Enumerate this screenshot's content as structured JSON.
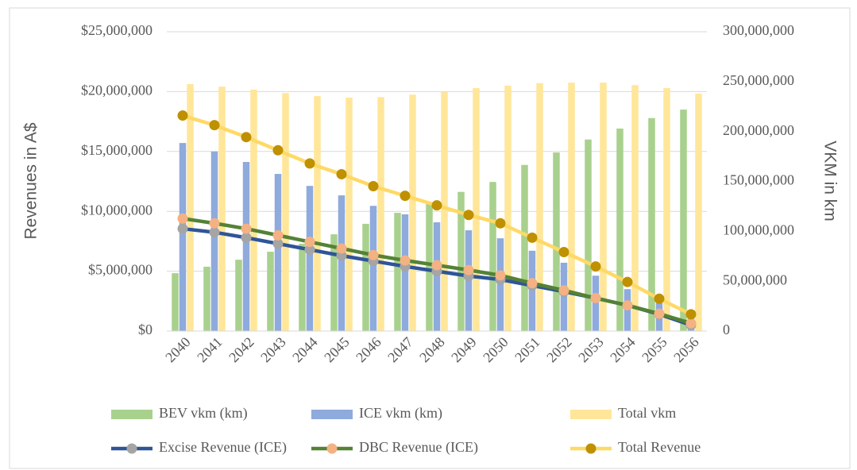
{
  "chart_data": {
    "type": "bar-line",
    "y_label": "Revenues in A$",
    "y2_label": "VKM in km",
    "categories": [
      "2040",
      "2041",
      "2042",
      "2043",
      "2044",
      "2045",
      "2046",
      "2047",
      "2048",
      "2049",
      "2050",
      "2051",
      "2052",
      "2053",
      "2054",
      "2055",
      "2056"
    ],
    "ylim": [
      0,
      25000000
    ],
    "yticks": [
      {
        "value": 0,
        "label": "$0"
      },
      {
        "value": 5000000,
        "label": "$5,000,000"
      },
      {
        "value": 10000000,
        "label": "$10,000,000"
      },
      {
        "value": 15000000,
        "label": "$15,000,000"
      },
      {
        "value": 20000000,
        "label": "$20,000,000"
      },
      {
        "value": 25000000,
        "label": "$25,000,000"
      }
    ],
    "y2lim": [
      0,
      300000000
    ],
    "y2ticks": [
      0,
      {
        "value": 50000000,
        "label": "50,000,000"
      },
      {
        "value": 100000000,
        "label": "100,000,000"
      },
      {
        "value": 150000000,
        "label": "150,000,000"
      },
      {
        "value": 200000000,
        "label": "200,000,000"
      },
      {
        "value": 250000000,
        "label": "250,000,000"
      },
      {
        "value": 300000000,
        "label": "300,000,000"
      }
    ],
    "grid": true,
    "series": [
      {
        "name": "BEV vkm (km)",
        "kind": "bar",
        "axis": "y2",
        "color": "#a9d18e",
        "values": [
          58000000,
          64500000,
          71500000,
          79500000,
          87500000,
          97000000,
          107500000,
          118500000,
          128000000,
          139500000,
          149500000,
          166500000,
          179000000,
          192000000,
          203000000,
          213500000,
          222000000
        ]
      },
      {
        "name": "ICE vkm (km)",
        "kind": "bar",
        "axis": "y2",
        "color": "#8faadc",
        "values": [
          188500000,
          180000000,
          169500000,
          157500000,
          145500000,
          136000000,
          125500000,
          117000000,
          109000000,
          101000000,
          93000000,
          80500000,
          68500000,
          55500000,
          42000000,
          28000000,
          13500000
        ]
      },
      {
        "name": "Total vkm",
        "kind": "bar",
        "axis": "y2",
        "color": "#ffe699",
        "values": [
          247500000,
          245000000,
          242000000,
          238500000,
          235500000,
          234000000,
          234500000,
          237000000,
          239500000,
          243500000,
          246000000,
          248500000,
          249000000,
          249000000,
          246500000,
          243500000,
          238000000
        ]
      },
      {
        "name": "Excise Revenue (ICE)",
        "kind": "line",
        "color": "#2f5597",
        "marker": "#a5a5a5",
        "values": [
          8550000,
          8250000,
          7800000,
          7300000,
          6800000,
          6300000,
          5850000,
          5400000,
          5000000,
          4600000,
          4300000,
          3800000,
          3300000,
          2750000,
          2150000,
          1400000,
          500000
        ]
      },
      {
        "name": "DBC Revenue (ICE)",
        "kind": "line",
        "color": "#548235",
        "marker": "#f4b183",
        "values": [
          9400000,
          9000000,
          8550000,
          8000000,
          7450000,
          6900000,
          6350000,
          5900000,
          5500000,
          5100000,
          4650000,
          4000000,
          3400000,
          2750000,
          2150000,
          1450000,
          650000
        ]
      },
      {
        "name": "Total Revenue",
        "kind": "line",
        "color": "#ffd966",
        "marker": "#bf9000",
        "values": [
          18000000,
          17200000,
          16200000,
          15100000,
          14000000,
          13100000,
          12100000,
          11300000,
          10500000,
          9700000,
          9000000,
          7800000,
          6600000,
          5400000,
          4100000,
          2700000,
          1400000
        ]
      }
    ]
  }
}
